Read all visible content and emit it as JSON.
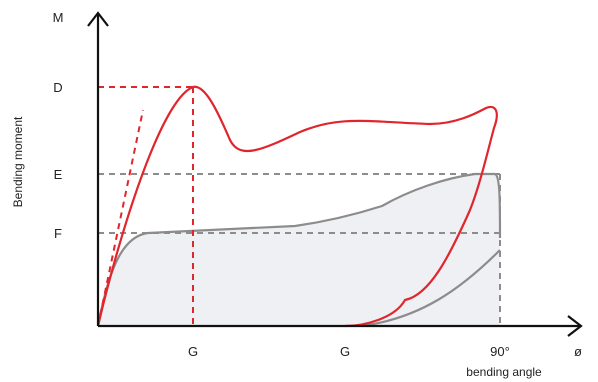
{
  "axes": {
    "y_axis_letter": "M",
    "y_axis_title": "Bending moment",
    "x_axis_symbol": "ø",
    "x_axis_title": "bending angle"
  },
  "y_levels": {
    "d": "D",
    "e": "E",
    "f": "F"
  },
  "x_marks": {
    "g1": "G",
    "g2": "G",
    "right_angle": "90°"
  },
  "colors": {
    "red_curve": "#e0262d",
    "grey_curve": "#8c8c8c",
    "fill_area": "#eff0f3",
    "axis": "#111111"
  }
}
